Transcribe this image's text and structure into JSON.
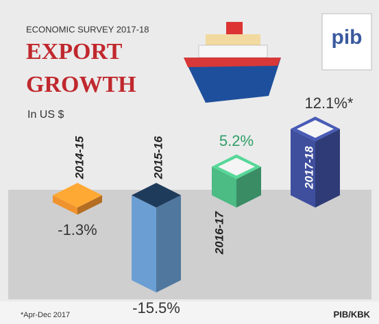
{
  "chart_data": {
    "type": "bar",
    "subtitle": "ECONOMIC SURVEY 2017-18",
    "title": [
      "EXPORT",
      "GROWTH"
    ],
    "unit": "In US $",
    "categories": [
      "2014-15",
      "2015-16",
      "2016-17",
      "2017-18"
    ],
    "values": [
      -1.3,
      -15.5,
      5.2,
      12.1
    ],
    "value_labels": [
      "-1.3%",
      "-15.5%",
      "5.2%",
      "12.1%*"
    ],
    "colors": [
      "#f0932e",
      "#6b9fd3",
      "#4cbb84",
      "#3f4f9e"
    ],
    "note": "*Apr-Dec 2017",
    "source": "PIB/KBK",
    "logo": "pib"
  }
}
